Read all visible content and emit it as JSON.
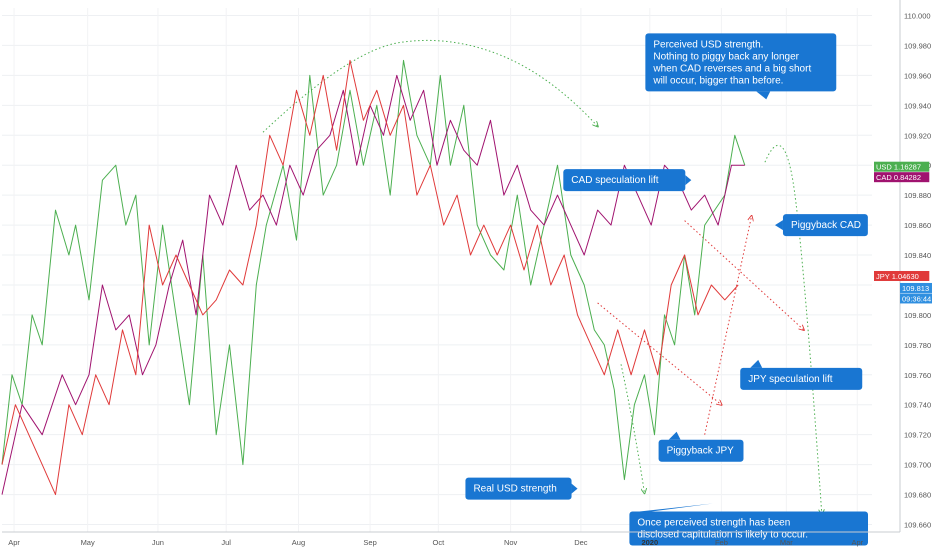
{
  "chart_data": {
    "type": "line",
    "title": "",
    "xlabel": "",
    "ylabel": "",
    "x_range": [
      0,
      13
    ],
    "ylim": [
      109.655,
      110.005
    ],
    "y_ticks": [
      110.0,
      109.98,
      109.96,
      109.94,
      109.92,
      109.9,
      109.88,
      109.86,
      109.84,
      109.82,
      109.8,
      109.78,
      109.76,
      109.74,
      109.72,
      109.7,
      109.68,
      109.66
    ],
    "y_tick_labels": [
      "110.000",
      "109.980",
      "109.960",
      "109.940",
      "109.920",
      "109.900",
      "109.880",
      "109.860",
      "109.840",
      "109.820",
      "109.800",
      "109.780",
      "109.760",
      "109.740",
      "109.720",
      "109.700",
      "109.680",
      "109.660"
    ],
    "x_ticks": [
      {
        "label": "Apr",
        "x": 0.18,
        "bold": false
      },
      {
        "label": "May",
        "x": 1.28,
        "bold": false
      },
      {
        "label": "Jun",
        "x": 2.33,
        "bold": false
      },
      {
        "label": "Jul",
        "x": 3.35,
        "bold": false
      },
      {
        "label": "Aug",
        "x": 4.43,
        "bold": false
      },
      {
        "label": "Sep",
        "x": 5.5,
        "bold": false
      },
      {
        "label": "Oct",
        "x": 6.52,
        "bold": false
      },
      {
        "label": "Nov",
        "x": 7.6,
        "bold": false
      },
      {
        "label": "Dec",
        "x": 8.65,
        "bold": false
      },
      {
        "label": "2020",
        "x": 9.68,
        "bold": true
      },
      {
        "label": "Feb",
        "x": 10.75,
        "bold": false
      },
      {
        "label": "Mar",
        "x": 11.72,
        "bold": false
      },
      {
        "label": "Apr",
        "x": 12.78,
        "bold": false
      }
    ],
    "series": [
      {
        "name": "USD",
        "color": "#4caf50",
        "x": [
          0,
          0.15,
          0.3,
          0.45,
          0.6,
          0.8,
          1.0,
          1.1,
          1.3,
          1.5,
          1.7,
          1.85,
          2.0,
          2.2,
          2.4,
          2.6,
          2.8,
          3.0,
          3.2,
          3.4,
          3.6,
          3.8,
          3.95,
          4.2,
          4.4,
          4.6,
          4.8,
          5.0,
          5.2,
          5.4,
          5.6,
          5.8,
          6.0,
          6.2,
          6.4,
          6.55,
          6.7,
          6.9,
          7.1,
          7.3,
          7.5,
          7.7,
          7.9,
          8.1,
          8.3,
          8.5,
          8.7,
          8.85,
          9.0,
          9.15,
          9.3,
          9.45,
          9.6,
          9.75,
          9.9,
          10.05,
          10.2,
          10.35,
          10.5,
          10.65,
          10.8,
          10.95,
          11.1
        ],
        "values": [
          109.7,
          109.76,
          109.74,
          109.8,
          109.78,
          109.87,
          109.84,
          109.86,
          109.81,
          109.89,
          109.9,
          109.86,
          109.88,
          109.78,
          109.86,
          109.8,
          109.74,
          109.84,
          109.72,
          109.78,
          109.7,
          109.82,
          109.86,
          109.9,
          109.85,
          109.96,
          109.88,
          109.9,
          109.95,
          109.9,
          109.94,
          109.88,
          109.97,
          109.92,
          109.9,
          109.96,
          109.9,
          109.94,
          109.86,
          109.84,
          109.83,
          109.88,
          109.82,
          109.86,
          109.9,
          109.84,
          109.82,
          109.79,
          109.78,
          109.75,
          109.69,
          109.74,
          109.76,
          109.72,
          109.8,
          109.78,
          109.84,
          109.8,
          109.86,
          109.87,
          109.88,
          109.92,
          109.9
        ]
      },
      {
        "name": "CAD",
        "color": "#a0136f",
        "x": [
          0,
          0.3,
          0.6,
          0.9,
          1.1,
          1.3,
          1.5,
          1.7,
          1.9,
          2.1,
          2.3,
          2.5,
          2.7,
          2.9,
          3.1,
          3.3,
          3.5,
          3.7,
          3.9,
          4.1,
          4.3,
          4.5,
          4.7,
          4.9,
          5.1,
          5.3,
          5.5,
          5.7,
          5.9,
          6.1,
          6.3,
          6.5,
          6.7,
          6.9,
          7.1,
          7.3,
          7.5,
          7.7,
          7.9,
          8.1,
          8.3,
          8.5,
          8.7,
          8.9,
          9.1,
          9.3,
          9.5,
          9.7,
          9.9,
          10.1,
          10.3,
          10.5,
          10.7,
          10.9,
          11.1
        ],
        "values": [
          109.68,
          109.74,
          109.72,
          109.76,
          109.74,
          109.76,
          109.82,
          109.79,
          109.8,
          109.76,
          109.78,
          109.82,
          109.85,
          109.8,
          109.88,
          109.86,
          109.9,
          109.87,
          109.88,
          109.86,
          109.9,
          109.88,
          109.91,
          109.92,
          109.95,
          109.9,
          109.94,
          109.92,
          109.96,
          109.93,
          109.95,
          109.9,
          109.93,
          109.91,
          109.9,
          109.93,
          109.88,
          109.9,
          109.87,
          109.86,
          109.88,
          109.86,
          109.84,
          109.87,
          109.86,
          109.9,
          109.88,
          109.86,
          109.9,
          109.89,
          109.87,
          109.88,
          109.86,
          109.9,
          109.9
        ]
      },
      {
        "name": "JPY",
        "color": "#e03a3a",
        "x": [
          0,
          0.2,
          0.4,
          0.6,
          0.8,
          1.0,
          1.2,
          1.4,
          1.6,
          1.8,
          2.0,
          2.2,
          2.4,
          2.6,
          2.8,
          3.0,
          3.2,
          3.4,
          3.6,
          3.8,
          4.0,
          4.2,
          4.4,
          4.6,
          4.8,
          5.0,
          5.2,
          5.4,
          5.6,
          5.8,
          6.0,
          6.2,
          6.4,
          6.6,
          6.8,
          7.0,
          7.2,
          7.4,
          7.6,
          7.8,
          8.0,
          8.2,
          8.4,
          8.6,
          8.8,
          9.0,
          9.2,
          9.4,
          9.6,
          9.8,
          10.0,
          10.2,
          10.4,
          10.6,
          10.8,
          11.0
        ],
        "values": [
          109.7,
          109.74,
          109.72,
          109.7,
          109.68,
          109.74,
          109.72,
          109.76,
          109.74,
          109.79,
          109.76,
          109.86,
          109.82,
          109.84,
          109.82,
          109.8,
          109.81,
          109.83,
          109.82,
          109.86,
          109.92,
          109.9,
          109.95,
          109.92,
          109.96,
          109.91,
          109.97,
          109.93,
          109.95,
          109.92,
          109.94,
          109.88,
          109.9,
          109.86,
          109.88,
          109.84,
          109.86,
          109.84,
          109.86,
          109.83,
          109.86,
          109.82,
          109.84,
          109.8,
          109.78,
          109.76,
          109.79,
          109.76,
          109.79,
          109.76,
          109.82,
          109.84,
          109.8,
          109.82,
          109.81,
          109.82
        ]
      }
    ],
    "price_tags": [
      {
        "label": "USD",
        "value_text": "1.16287",
        "color": "#4caf50",
        "at": 109.899
      },
      {
        "label": "CAD",
        "value_text": "0.84282",
        "color": "#a0136f",
        "at": 109.892
      },
      {
        "label": "JPY",
        "value_text": "1.04630",
        "color": "#e03a3a",
        "at": 109.826
      },
      {
        "label": "",
        "value_text": "109.813",
        "color": "#2f8fe0",
        "at": 109.818
      },
      {
        "label": "",
        "value_text": "09:36:44",
        "color": "#2f8fe0",
        "at": 109.811
      }
    ],
    "annotations": [
      {
        "text": [
          "Perceived USD strength.",
          "Nothing to piggy back any longer",
          "when CAD reverses and a big short",
          "will occur, bigger than before."
        ],
        "anchor_x": 11.42,
        "anchor_y": 109.944
      },
      {
        "text": [
          "CAD speculation lift"
        ],
        "anchor_x": 10.3,
        "anchor_y": 109.89
      },
      {
        "text": [
          "Piggyback CAD"
        ],
        "anchor_x": 11.55,
        "anchor_y": 109.86
      },
      {
        "text": [
          "JPY speculation lift"
        ],
        "anchor_x": 11.3,
        "anchor_y": 109.77
      },
      {
        "text": [
          "Piggyback JPY"
        ],
        "anchor_x": 10.08,
        "anchor_y": 109.722
      },
      {
        "text": [
          "Real USD strength"
        ],
        "anchor_x": 8.6,
        "anchor_y": 109.684
      },
      {
        "text": [
          "Once perceived strength has been",
          "disclosed capitulation is likely to occur."
        ],
        "anchor_x": 10.62,
        "anchor_y": 109.674
      }
    ],
    "guides": [
      {
        "type": "arc",
        "color": "#4caf50",
        "points": [
          [
            3.9,
            109.922
          ],
          [
            5.2,
            109.977
          ],
          [
            6.7,
            109.987
          ],
          [
            8.2,
            109.96
          ],
          [
            8.9,
            109.926
          ]
        ]
      },
      {
        "type": "line",
        "color": "#e03a3a",
        "points": [
          [
            8.9,
            109.808
          ],
          [
            10.75,
            109.74
          ]
        ]
      },
      {
        "type": "line",
        "color": "#e03a3a",
        "points": [
          [
            10.2,
            109.863
          ],
          [
            11.98,
            109.79
          ]
        ]
      },
      {
        "type": "line",
        "color": "#e03a3a",
        "points": [
          [
            10.5,
            109.72
          ],
          [
            11.2,
            109.866
          ]
        ]
      },
      {
        "type": "arc",
        "color": "#4caf50",
        "points": [
          [
            11.4,
            109.902
          ],
          [
            11.65,
            109.928
          ],
          [
            11.95,
            109.86
          ],
          [
            12.25,
            109.667
          ]
        ]
      },
      {
        "type": "arc",
        "color": "#4caf50",
        "points": [
          [
            9.25,
            109.767
          ],
          [
            9.45,
            109.725
          ],
          [
            9.6,
            109.681
          ]
        ]
      }
    ]
  }
}
